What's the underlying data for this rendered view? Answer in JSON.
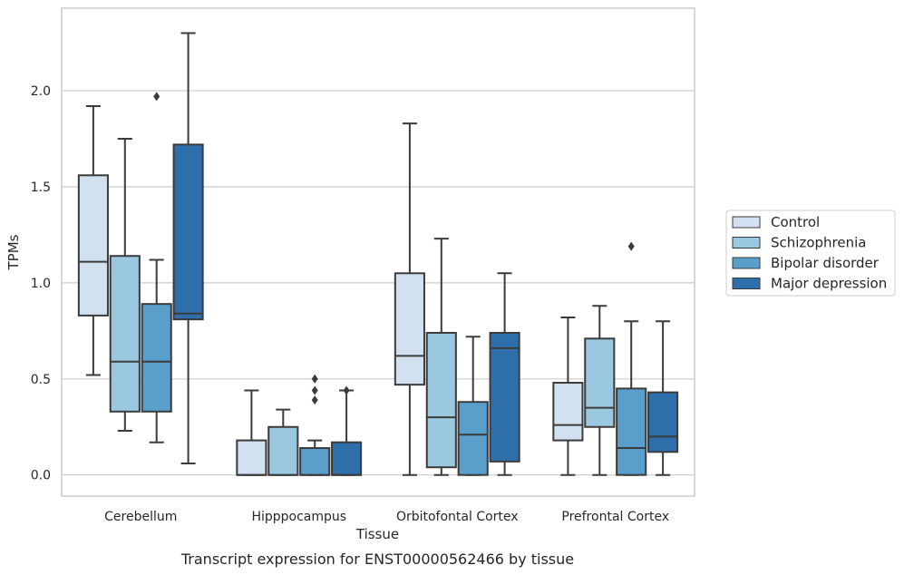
{
  "chart_data": {
    "type": "boxplot",
    "title": "",
    "caption": "Transcript expression for ENST00000562466 by tissue",
    "xlabel": "Tissue",
    "ylabel": "TPMs",
    "ylim": [
      -0.11,
      2.43
    ],
    "yticks": [
      0.0,
      0.5,
      1.0,
      1.5,
      2.0
    ],
    "ytick_labels": [
      "0.0",
      "0.5",
      "1.0",
      "1.5",
      "2.0"
    ],
    "grid": "horizontal",
    "legend_position": "right",
    "categories": [
      "Cerebellum",
      "Hipppocampus",
      "Orbitofontal Cortex",
      "Prefrontal Cortex"
    ],
    "series": [
      {
        "name": "Control",
        "color": "#d2e1f0",
        "boxes": [
          {
            "whislo": 0.52,
            "q1": 0.83,
            "med": 1.11,
            "q3": 1.56,
            "whishi": 1.92,
            "fliers": []
          },
          {
            "whislo": 0.0,
            "q1": 0.0,
            "med": 0.0,
            "q3": 0.18,
            "whishi": 0.44,
            "fliers": []
          },
          {
            "whislo": 0.0,
            "q1": 0.47,
            "med": 0.62,
            "q3": 1.05,
            "whishi": 1.83,
            "fliers": []
          },
          {
            "whislo": 0.0,
            "q1": 0.18,
            "med": 0.26,
            "q3": 0.48,
            "whishi": 0.82,
            "fliers": []
          }
        ]
      },
      {
        "name": "Schizophrenia",
        "color": "#9ac8e0",
        "boxes": [
          {
            "whislo": 0.23,
            "q1": 0.33,
            "med": 0.59,
            "q3": 1.14,
            "whishi": 1.75,
            "fliers": []
          },
          {
            "whislo": 0.0,
            "q1": 0.0,
            "med": 0.0,
            "q3": 0.25,
            "whishi": 0.34,
            "fliers": []
          },
          {
            "whislo": 0.0,
            "q1": 0.04,
            "med": 0.3,
            "q3": 0.74,
            "whishi": 1.23,
            "fliers": []
          },
          {
            "whislo": 0.0,
            "q1": 0.25,
            "med": 0.35,
            "q3": 0.71,
            "whishi": 0.88,
            "fliers": []
          }
        ]
      },
      {
        "name": "Bipolar disorder",
        "color": "#5a9fcb",
        "boxes": [
          {
            "whislo": 0.17,
            "q1": 0.33,
            "med": 0.59,
            "q3": 0.89,
            "whishi": 1.12,
            "fliers": [
              1.97
            ]
          },
          {
            "whislo": 0.0,
            "q1": 0.0,
            "med": 0.0,
            "q3": 0.14,
            "whishi": 0.18,
            "fliers": [
              0.5,
              0.44,
              0.39
            ]
          },
          {
            "whislo": 0.0,
            "q1": 0.0,
            "med": 0.21,
            "q3": 0.38,
            "whishi": 0.72,
            "fliers": []
          },
          {
            "whislo": 0.0,
            "q1": 0.0,
            "med": 0.14,
            "q3": 0.45,
            "whishi": 0.8,
            "fliers": [
              1.19
            ]
          }
        ]
      },
      {
        "name": "Major depression",
        "color": "#2e6eaa",
        "boxes": [
          {
            "whislo": 0.06,
            "q1": 0.81,
            "med": 0.84,
            "q3": 1.72,
            "whishi": 2.3,
            "fliers": []
          },
          {
            "whislo": 0.0,
            "q1": 0.0,
            "med": 0.0,
            "q3": 0.17,
            "whishi": 0.44,
            "fliers": [
              0.44
            ]
          },
          {
            "whislo": 0.0,
            "q1": 0.07,
            "med": 0.66,
            "q3": 0.74,
            "whishi": 1.05,
            "fliers": []
          },
          {
            "whislo": 0.0,
            "q1": 0.12,
            "med": 0.2,
            "q3": 0.43,
            "whishi": 0.8,
            "fliers": []
          }
        ]
      }
    ]
  },
  "colors": {
    "grid": "#cccccc",
    "frame": "#cccccc",
    "line": "#3b3b3b"
  }
}
